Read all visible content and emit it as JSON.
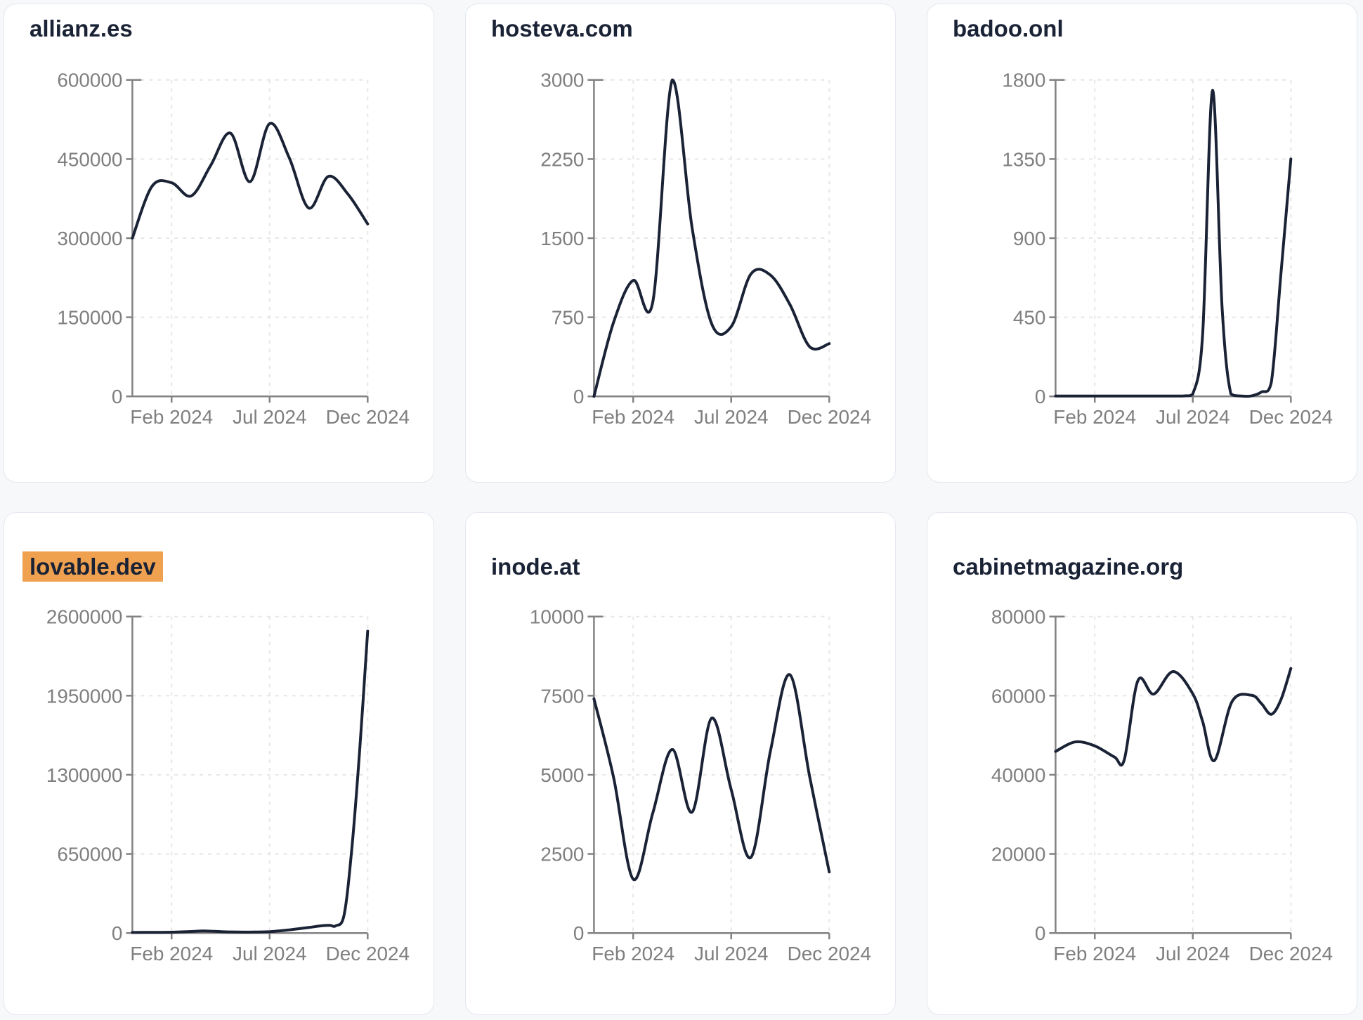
{
  "style": {
    "page_bg": "#f7f8fa",
    "card_bg": "#ffffff",
    "card_border": "#e4e7ee",
    "title_color": "#1a2235",
    "line_color": "#1a2235",
    "axis_color": "#828282",
    "tick_label_color": "#7f7f7f",
    "grid_color": "#e6e6e6",
    "highlight_bg": "#f0a150"
  },
  "chart_data": [
    {
      "type": "line",
      "title": "allianz.es",
      "title_highlighted": false,
      "legend": false,
      "grid": true,
      "x_ticks": [
        {
          "label": "Feb 2024",
          "f": 0.1667
        },
        {
          "label": "Jul 2024",
          "f": 0.5833
        },
        {
          "label": "Dec 2024",
          "f": 1
        }
      ],
      "y_ticks": [
        0,
        150000,
        300000,
        450000,
        600000
      ],
      "y_max": 600000,
      "points": [
        [
          0,
          300000
        ],
        [
          0.083,
          398000
        ],
        [
          0.167,
          405000
        ],
        [
          0.25,
          380000
        ],
        [
          0.333,
          438000
        ],
        [
          0.417,
          499000
        ],
        [
          0.5,
          407000
        ],
        [
          0.583,
          517000
        ],
        [
          0.667,
          452000
        ],
        [
          0.75,
          357000
        ],
        [
          0.833,
          417000
        ],
        [
          0.917,
          383000
        ],
        [
          1,
          327000
        ]
      ]
    },
    {
      "type": "line",
      "title": "hosteva.com",
      "title_highlighted": false,
      "legend": false,
      "grid": true,
      "x_ticks": [
        {
          "label": "Feb 2024",
          "f": 0.1667
        },
        {
          "label": "Jul 2024",
          "f": 0.5833
        },
        {
          "label": "Dec 2024",
          "f": 1
        }
      ],
      "y_ticks": [
        0,
        750,
        1500,
        2250,
        3000
      ],
      "y_max": 3000,
      "points": [
        [
          0,
          0
        ],
        [
          0.083,
          700
        ],
        [
          0.167,
          1100
        ],
        [
          0.25,
          895
        ],
        [
          0.333,
          3000
        ],
        [
          0.417,
          1600
        ],
        [
          0.5,
          690
        ],
        [
          0.583,
          660
        ],
        [
          0.667,
          1160
        ],
        [
          0.75,
          1150
        ],
        [
          0.833,
          870
        ],
        [
          0.917,
          470
        ],
        [
          1,
          500
        ]
      ]
    },
    {
      "type": "line",
      "title": "badoo.onl",
      "title_highlighted": false,
      "legend": false,
      "grid": true,
      "x_ticks": [
        {
          "label": "Feb 2024",
          "f": 0.1667
        },
        {
          "label": "Jul 2024",
          "f": 0.5833
        },
        {
          "label": "Dec 2024",
          "f": 1
        }
      ],
      "y_ticks": [
        0,
        450,
        900,
        1350,
        1800
      ],
      "y_max": 1800,
      "points": [
        [
          0,
          2
        ],
        [
          0.083,
          2
        ],
        [
          0.167,
          2
        ],
        [
          0.25,
          2
        ],
        [
          0.333,
          2
        ],
        [
          0.417,
          2
        ],
        [
          0.5,
          2
        ],
        [
          0.55,
          3
        ],
        [
          0.583,
          12
        ],
        [
          0.625,
          350
        ],
        [
          0.667,
          1740
        ],
        [
          0.708,
          500
        ],
        [
          0.745,
          15
        ],
        [
          0.792,
          2
        ],
        [
          0.833,
          3
        ],
        [
          0.875,
          25
        ],
        [
          0.917,
          80
        ],
        [
          0.958,
          700
        ],
        [
          1,
          1350
        ]
      ]
    },
    {
      "type": "line",
      "title": "lovable.dev",
      "title_highlighted": true,
      "legend": false,
      "grid": true,
      "x_ticks": [
        {
          "label": "Feb 2024",
          "f": 0.1667
        },
        {
          "label": "Jul 2024",
          "f": 0.5833
        },
        {
          "label": "Dec 2024",
          "f": 1
        }
      ],
      "y_ticks": [
        0,
        650000,
        1300000,
        1950000,
        2600000
      ],
      "y_max": 2600000,
      "points": [
        [
          0,
          5000
        ],
        [
          0.083,
          5500
        ],
        [
          0.167,
          7000
        ],
        [
          0.25,
          13000
        ],
        [
          0.3,
          17000
        ],
        [
          0.35,
          14000
        ],
        [
          0.417,
          9000
        ],
        [
          0.5,
          8000
        ],
        [
          0.583,
          11000
        ],
        [
          0.667,
          26000
        ],
        [
          0.75,
          46000
        ],
        [
          0.81,
          61000
        ],
        [
          0.84,
          63000
        ],
        [
          0.865,
          60000
        ],
        [
          0.9,
          150000
        ],
        [
          0.933,
          700000
        ],
        [
          0.966,
          1500000
        ],
        [
          1,
          2480000
        ]
      ]
    },
    {
      "type": "line",
      "title": "inode.at",
      "title_highlighted": false,
      "legend": false,
      "grid": true,
      "x_ticks": [
        {
          "label": "Feb 2024",
          "f": 0.1667
        },
        {
          "label": "Jul 2024",
          "f": 0.5833
        },
        {
          "label": "Dec 2024",
          "f": 1
        }
      ],
      "y_ticks": [
        0,
        2500,
        5000,
        7500,
        10000
      ],
      "y_max": 10000,
      "points": [
        [
          0,
          7400
        ],
        [
          0.083,
          4930
        ],
        [
          0.167,
          1700
        ],
        [
          0.25,
          3790
        ],
        [
          0.333,
          5800
        ],
        [
          0.417,
          3820
        ],
        [
          0.5,
          6790
        ],
        [
          0.583,
          4540
        ],
        [
          0.667,
          2390
        ],
        [
          0.75,
          5750
        ],
        [
          0.833,
          8160
        ],
        [
          0.917,
          4930
        ],
        [
          1,
          1930
        ]
      ]
    },
    {
      "type": "line",
      "title": "cabinetmagazine.org",
      "title_highlighted": false,
      "legend": false,
      "grid": true,
      "x_ticks": [
        {
          "label": "Feb 2024",
          "f": 0.1667
        },
        {
          "label": "Jul 2024",
          "f": 0.5833
        },
        {
          "label": "Dec 2024",
          "f": 1
        }
      ],
      "y_ticks": [
        0,
        20000,
        40000,
        60000,
        80000
      ],
      "y_max": 80000,
      "points": [
        [
          0,
          45900
        ],
        [
          0.083,
          48300
        ],
        [
          0.167,
          47300
        ],
        [
          0.25,
          44500
        ],
        [
          0.292,
          43800
        ],
        [
          0.35,
          63800
        ],
        [
          0.417,
          60400
        ],
        [
          0.5,
          66100
        ],
        [
          0.583,
          60500
        ],
        [
          0.625,
          53500
        ],
        [
          0.675,
          43600
        ],
        [
          0.75,
          58500
        ],
        [
          0.833,
          60100
        ],
        [
          0.875,
          58000
        ],
        [
          0.917,
          55300
        ],
        [
          0.958,
          59000
        ],
        [
          1,
          66900
        ]
      ]
    }
  ]
}
